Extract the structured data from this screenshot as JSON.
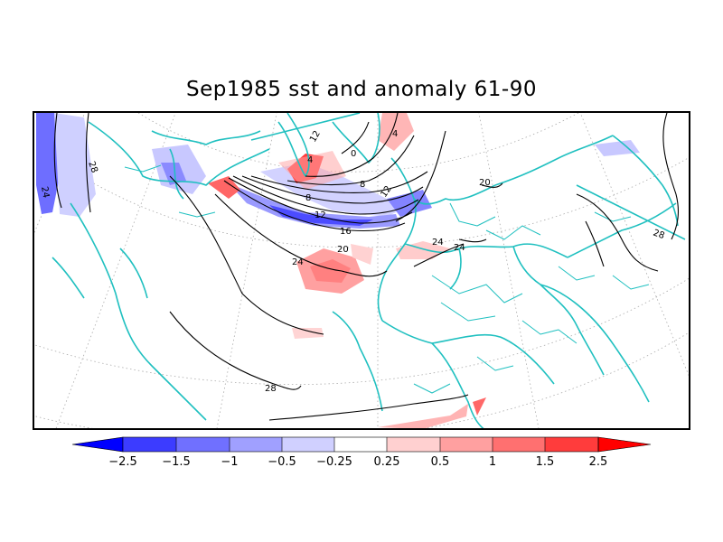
{
  "title": "Sep1985 sst and anomaly 61-90",
  "map": {
    "variable": "sst and anomaly",
    "period": "Sep1985",
    "climatology": "61-90",
    "projection": "polar stereographic (north)",
    "coastline_color": "#20c0c0",
    "contour_color": "#000000",
    "contour_labels": [
      "28",
      "24",
      "0",
      "4",
      "4",
      "8",
      "8",
      "12",
      "12",
      "16",
      "20",
      "24",
      "24",
      "24",
      "20",
      "28",
      "28",
      "12"
    ],
    "anomaly_features": [
      {
        "region": "labrador-sea-negative",
        "level": -1.5,
        "color": "#7070ff"
      },
      {
        "region": "gulf-stream-negative",
        "level": -1.5,
        "color": "#5858ff"
      },
      {
        "region": "west-pacific-negative",
        "level": -1,
        "color": "#8888ff"
      },
      {
        "region": "greenland-positive",
        "level": 1.5,
        "color": "#ff4848"
      },
      {
        "region": "nova-scotia-positive",
        "level": 1,
        "color": "#ff7070"
      },
      {
        "region": "azores-positive",
        "level": 1,
        "color": "#ff8888"
      },
      {
        "region": "mediterranean-positive",
        "level": 0.5,
        "color": "#ffb0b0"
      },
      {
        "region": "africa-south-positive",
        "level": 0.5,
        "color": "#ff9a9a"
      }
    ]
  },
  "colorbar": {
    "tick_labels": [
      "-2.5",
      "-1.5",
      "-1",
      "-0.5",
      "-0.25",
      "0.25",
      "0.5",
      "1",
      "1.5",
      "2.5"
    ],
    "colors": [
      "#0000ff",
      "#3c3cff",
      "#7070ff",
      "#a0a0ff",
      "#d0d0ff",
      "#ffffff",
      "#ffd0d0",
      "#ffa0a0",
      "#ff7070",
      "#ff3c3c",
      "#ff0000"
    ]
  }
}
